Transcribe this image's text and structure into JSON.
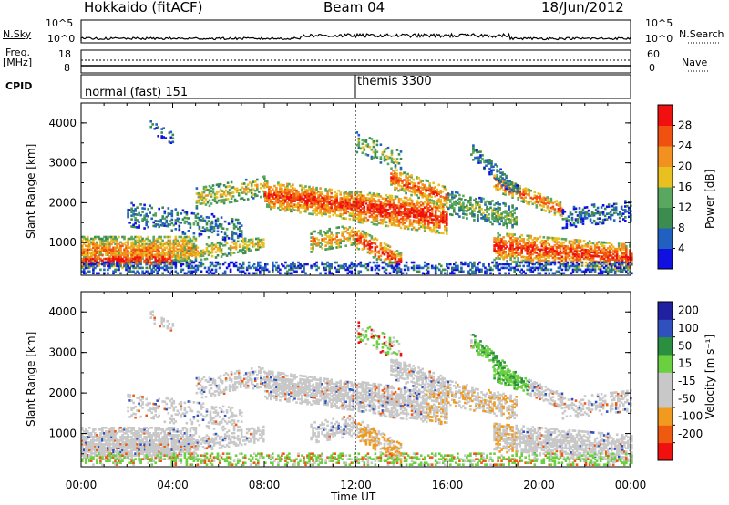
{
  "header": {
    "station": "Hokkaido (fitACF)",
    "beam": "Beam 04",
    "date": "18/Jun/2012"
  },
  "strip_labels": {
    "nsky": "N.Sky",
    "nsearch": "N.Search",
    "freq_l1": "Freq.",
    "freq_l2": "[MHz]",
    "nave": "Nave",
    "cpid": "CPID",
    "exp1": "normal (fast) 151",
    "exp2": "themis 3300",
    "nsky_top": "10^5",
    "nsky_bot": "10^0",
    "nsearch_top": "10^5",
    "nsearch_bot": "10^0",
    "freq_top": "18",
    "freq_bot": "8",
    "nave_top": "60",
    "nave_bot": "0"
  },
  "colors": {
    "power": [
      "#1010e0",
      "#2060c0",
      "#3c8c50",
      "#5aa860",
      "#e8c020",
      "#f29020",
      "#f05010",
      "#f01010"
    ],
    "velocity": [
      "#f01010",
      "#f05a10",
      "#f09a20",
      "#c8c8c8",
      "#c8c8c8",
      "#6ad040",
      "#2a9040",
      "#3050c0",
      "#2020a0"
    ],
    "grey": "#c8c8c8"
  },
  "chart_data": [
    {
      "type": "heatmap",
      "title": "Power [dB]",
      "ylabel": "Slant Range [km]",
      "xlabel": "Time UT",
      "x_ticks": [
        "00:00",
        "04:00",
        "08:00",
        "12:00",
        "16:00",
        "20:00",
        "00:00"
      ],
      "y_ticks": [
        1000,
        2000,
        3000,
        4000
      ],
      "ylim": [
        180,
        4500
      ],
      "xlim_hours": [
        0,
        24
      ],
      "colorbar_label": "Power [dB]",
      "colorbar_ticks": [
        "4",
        "8",
        "12",
        "16",
        "20",
        "24",
        "28"
      ]
    },
    {
      "type": "heatmap",
      "title": "Velocity [m s^-1]",
      "ylabel": "Slant Range [km]",
      "xlabel": "Time UT",
      "x_ticks": [
        "00:00",
        "04:00",
        "08:00",
        "12:00",
        "16:00",
        "20:00",
        "00:00"
      ],
      "y_ticks": [
        1000,
        2000,
        3000,
        4000
      ],
      "ylim": [
        180,
        4500
      ],
      "xlim_hours": [
        0,
        24
      ],
      "colorbar_label": "Velocity [m s⁻¹]",
      "colorbar_ticks": [
        "200",
        "100",
        "50",
        "15",
        "-15",
        "-50",
        "-100",
        "-200"
      ]
    }
  ]
}
